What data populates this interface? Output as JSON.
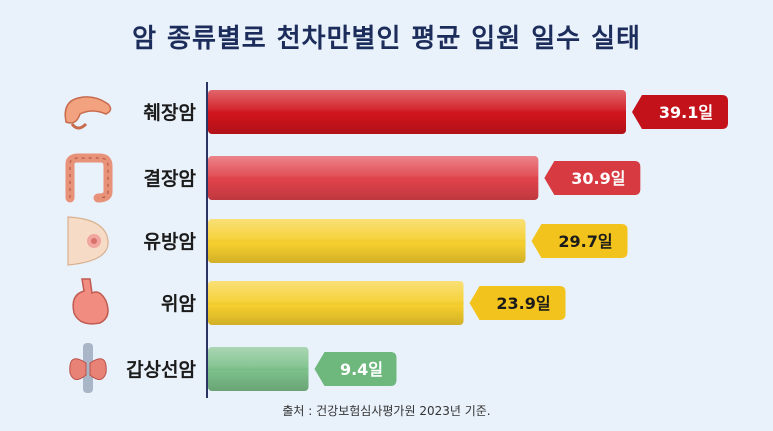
{
  "title": "암 종류별로 천차만별인 평균 입원 일수 실태",
  "source": "출처 : 건강보험심사평가원 2023년 기준.",
  "chart_data": {
    "type": "bar",
    "orientation": "horizontal",
    "categories": [
      "췌장암",
      "결장암",
      "유방암",
      "위암",
      "갑상선암"
    ],
    "values": [
      39.1,
      30.9,
      29.7,
      23.9,
      9.4
    ],
    "value_labels": [
      "39.1일",
      "30.9일",
      "29.7일",
      "23.9일",
      "9.4일"
    ],
    "unit": "일",
    "icons": [
      "pancreas-icon",
      "colon-icon",
      "breast-icon",
      "stomach-icon",
      "thyroid-icon"
    ],
    "bar_colors": [
      "#d0141c",
      "#e0424a",
      "#f6cf2e",
      "#f6cf2e",
      "#7cc08a"
    ],
    "badge_colors": [
      "#c4121b",
      "#d73a40",
      "#f2c21d",
      "#f2c21d",
      "#6fb87d"
    ],
    "badge_text_colors": [
      "#ffffff",
      "#ffffff",
      "#1b1b1b",
      "#1b1b1b",
      "#ffffff"
    ],
    "title": "암 종류별로 천차만별인 평균 입원 일수 실태",
    "xlabel": "",
    "ylabel": "",
    "xlim": [
      0,
      39.1
    ],
    "grid": false,
    "legend": "none"
  }
}
